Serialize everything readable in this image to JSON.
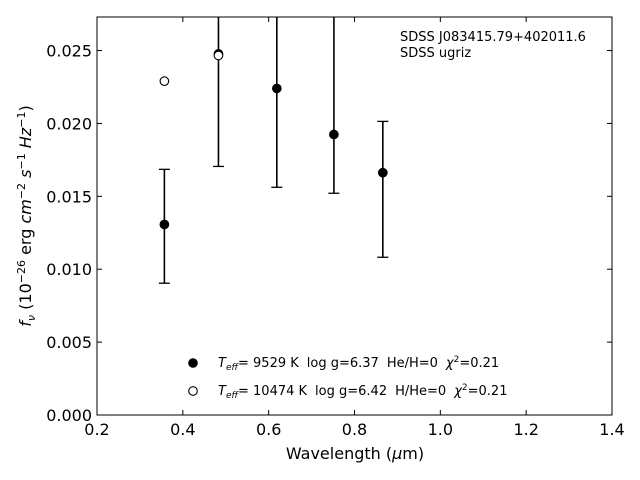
{
  "chart_data": {
    "type": "scatter",
    "annotation": [
      "SDSS J083415.79+402011.6",
      "SDSS ugriz"
    ],
    "xlabel": "Wavelength (μm)",
    "ylabel": "f_ν (10^-26 erg cm^-2 s^-1 Hz^-1)",
    "xlim": [
      0.2,
      1.4
    ],
    "ylim": [
      0.0,
      0.0273
    ],
    "xticks": [
      0.2,
      0.4,
      0.6,
      0.8,
      1.0,
      1.2,
      1.4
    ],
    "xtick_labels": [
      "0.2",
      "0.4",
      "0.6",
      "0.8",
      "1.0",
      "1.2",
      "1.4"
    ],
    "yticks": [
      0.0,
      0.005,
      0.01,
      0.015,
      0.02,
      0.025
    ],
    "ytick_labels": [
      "0.000",
      "0.005",
      "0.010",
      "0.015",
      "0.020",
      "0.025"
    ],
    "grid": false,
    "legend_placement": "bottom-center",
    "observed": {
      "points": [
        {
          "x": 0.357,
          "y": 0.01308,
          "ylo": 0.00904,
          "yhi": 0.01685
        },
        {
          "x": 0.483,
          "y": 0.02478,
          "ylo": 0.01705,
          "yhi": 0.0273
        },
        {
          "x": 0.619,
          "y": 0.02239,
          "ylo": 0.01562,
          "yhi": 0.0273
        },
        {
          "x": 0.752,
          "y": 0.01924,
          "ylo": 0.01521,
          "yhi": 0.0273
        },
        {
          "x": 0.866,
          "y": 0.01663,
          "ylo": 0.01082,
          "yhi": 0.02014
        }
      ]
    },
    "series": [
      {
        "name": "T_eff= 9529 K log g=6.37 He/H=0 χ²=0.21",
        "marker": "filled-circle",
        "legend": {
          "teff": "= 9529 K",
          "logg": "log g=6.37",
          "comp": "He/H=0",
          "chi": "=0.21"
        },
        "x": [
          0.357,
          0.483,
          0.619,
          0.752,
          0.866
        ],
        "y": [
          0.01307,
          0.02477,
          0.0224,
          0.01924,
          0.01662
        ]
      },
      {
        "name": "T_eff= 10474 K log g=6.42 H/He=0 χ²=0.21",
        "marker": "open-circle",
        "legend": {
          "teff": "= 10474 K",
          "logg": "log g=6.42",
          "comp": "H/He=0",
          "chi": "=0.21"
        },
        "x": [
          0.357,
          0.483
        ],
        "y": [
          0.0229,
          0.02466
        ]
      }
    ]
  }
}
